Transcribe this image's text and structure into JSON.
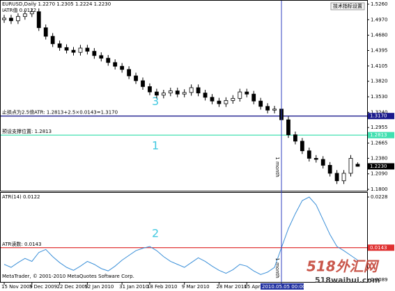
{
  "header": {
    "symbol_line": "EURUSD,Daily 1.2270 1.2305 1.2224 1.2230",
    "indicator_line": "IATR值 0.0122",
    "toolbar_label": "技术指标设置"
  },
  "footer": "MetaTrader, © 2001-2010 MetaQuotes Software Corp.",
  "watermark": {
    "title": "518外汇网",
    "url": "518waihui.com"
  },
  "period_labels": [
    "1 month",
    "1 month"
  ],
  "chart_data": [
    {
      "type": "candlestick",
      "categories": [
        "15 Nov 2009",
        null,
        null,
        null,
        "3 Dec 2009",
        null,
        null,
        null,
        "22 Dec 2009",
        null,
        null,
        null,
        "12 Jan 2010",
        null,
        null,
        null,
        null,
        "31 Jan 2010",
        null,
        null,
        null,
        "18 Feb 2010",
        null,
        null,
        null,
        null,
        "9 Mar 2010",
        null,
        null,
        null,
        null,
        "28 Mar 2010",
        null,
        null,
        null,
        "15 Apr 2010",
        null,
        null,
        null,
        null,
        "2010.05.05 00:00",
        null,
        null,
        null,
        null,
        null,
        null,
        null,
        null,
        null,
        null,
        null
      ],
      "crosshair_category": "2010.05.05 00:00",
      "open": [
        1.497,
        1.5,
        1.495,
        1.503,
        1.508,
        1.512,
        1.482,
        1.466,
        1.452,
        1.445,
        1.44,
        1.436,
        1.444,
        1.438,
        1.43,
        1.425,
        1.417,
        1.41,
        1.404,
        1.392,
        1.383,
        1.372,
        1.362,
        1.356,
        1.36,
        1.364,
        1.358,
        1.361,
        1.37,
        1.36,
        1.352,
        1.345,
        1.34,
        1.346,
        1.35,
        1.362,
        1.358,
        1.345,
        1.335,
        1.328,
        1.33,
        1.31,
        1.282,
        1.27,
        1.252,
        1.238,
        1.236,
        1.225,
        1.21,
        1.196,
        1.21,
        1.227
      ],
      "high": [
        1.506,
        1.506,
        1.509,
        1.514,
        1.518,
        1.518,
        1.488,
        1.472,
        1.458,
        1.451,
        1.446,
        1.45,
        1.45,
        1.444,
        1.436,
        1.431,
        1.423,
        1.416,
        1.41,
        1.398,
        1.389,
        1.378,
        1.368,
        1.366,
        1.37,
        1.37,
        1.367,
        1.376,
        1.376,
        1.366,
        1.358,
        1.351,
        1.352,
        1.356,
        1.368,
        1.368,
        1.364,
        1.351,
        1.341,
        1.336,
        1.336,
        1.316,
        1.288,
        1.276,
        1.258,
        1.244,
        1.242,
        1.231,
        1.216,
        1.216,
        1.244,
        1.2305
      ],
      "low": [
        1.491,
        1.489,
        1.489,
        1.497,
        1.502,
        1.476,
        1.46,
        1.446,
        1.439,
        1.434,
        1.43,
        1.43,
        1.432,
        1.424,
        1.419,
        1.411,
        1.404,
        1.398,
        1.386,
        1.377,
        1.366,
        1.356,
        1.35,
        1.35,
        1.354,
        1.352,
        1.352,
        1.355,
        1.354,
        1.346,
        1.339,
        1.334,
        1.334,
        1.34,
        1.344,
        1.352,
        1.339,
        1.329,
        1.322,
        1.322,
        1.304,
        1.276,
        1.264,
        1.246,
        1.232,
        1.23,
        1.219,
        1.204,
        1.19,
        1.19,
        1.204,
        1.2224
      ],
      "close": [
        1.5,
        1.495,
        1.503,
        1.508,
        1.512,
        1.482,
        1.466,
        1.452,
        1.445,
        1.44,
        1.436,
        1.444,
        1.438,
        1.43,
        1.425,
        1.417,
        1.41,
        1.404,
        1.392,
        1.383,
        1.372,
        1.362,
        1.356,
        1.36,
        1.364,
        1.358,
        1.361,
        1.37,
        1.36,
        1.352,
        1.345,
        1.34,
        1.346,
        1.35,
        1.362,
        1.358,
        1.345,
        1.335,
        1.328,
        1.33,
        1.31,
        1.282,
        1.27,
        1.252,
        1.238,
        1.236,
        1.225,
        1.21,
        1.196,
        1.21,
        1.238,
        1.223
      ],
      "up_color": "#ffffff",
      "down_color": "#000000",
      "ylim": [
        1.18,
        1.526
      ],
      "yticks": [
        {
          "value": 1.526,
          "label": "1.5260"
        },
        {
          "value": 1.497,
          "label": "1.4970"
        },
        {
          "value": 1.468,
          "label": "1.4680"
        },
        {
          "value": 1.4395,
          "label": "1.4395"
        },
        {
          "value": 1.4105,
          "label": "1.4105"
        },
        {
          "value": 1.382,
          "label": "1.3820"
        },
        {
          "value": 1.353,
          "label": "1.3530"
        },
        {
          "value": 1.324,
          "label": "1.3240"
        },
        {
          "value": 1.2955,
          "label": "1.2955"
        },
        {
          "value": 1.2665,
          "label": "1.2665"
        },
        {
          "value": 1.238,
          "label": "1.2380"
        },
        {
          "value": 1.209,
          "label": "1.2090"
        },
        {
          "value": 1.18,
          "label": "1.1800"
        }
      ],
      "hlines": [
        {
          "value": 1.317,
          "label": "1.3170",
          "color": "#1a1a8c",
          "text": "止损点为2.5倍ATR: 1.2813+2.5×0.0143=1.3170",
          "marker": "3"
        },
        {
          "value": 1.2813,
          "label": "1.2813",
          "color": "#40e0b0",
          "text": "预设支撑位置: 1.2813",
          "marker": "1"
        }
      ],
      "current": {
        "value": 1.223,
        "label": "1.2230"
      }
    },
    {
      "type": "line",
      "title": "ATR(14) 0.0122",
      "color": "#3a8fd8",
      "values": [
        0.0115,
        0.011,
        0.0118,
        0.0125,
        0.012,
        0.0135,
        0.014,
        0.0128,
        0.0118,
        0.011,
        0.0105,
        0.0112,
        0.012,
        0.0115,
        0.0108,
        0.0104,
        0.0112,
        0.0122,
        0.013,
        0.0138,
        0.0142,
        0.0145,
        0.0138,
        0.0128,
        0.012,
        0.0115,
        0.011,
        0.0118,
        0.0126,
        0.012,
        0.0112,
        0.0105,
        0.01,
        0.0106,
        0.0115,
        0.0112,
        0.0104,
        0.0098,
        0.0102,
        0.011,
        0.0143,
        0.0175,
        0.02,
        0.0222,
        0.0228,
        0.0215,
        0.019,
        0.0165,
        0.0145,
        0.0138,
        0.013,
        0.0122
      ],
      "ylim": [
        0.0089,
        0.0228
      ],
      "yticks": [
        {
          "value": 0.0228,
          "label": "0.0228"
        },
        {
          "value": 0.0089,
          "label": "0.0089"
        }
      ],
      "hlines": [
        {
          "value": 0.0143,
          "label": "0.0143",
          "color": "#e03030",
          "text": "ATR读数: 0.0143",
          "marker": "2"
        }
      ]
    }
  ]
}
